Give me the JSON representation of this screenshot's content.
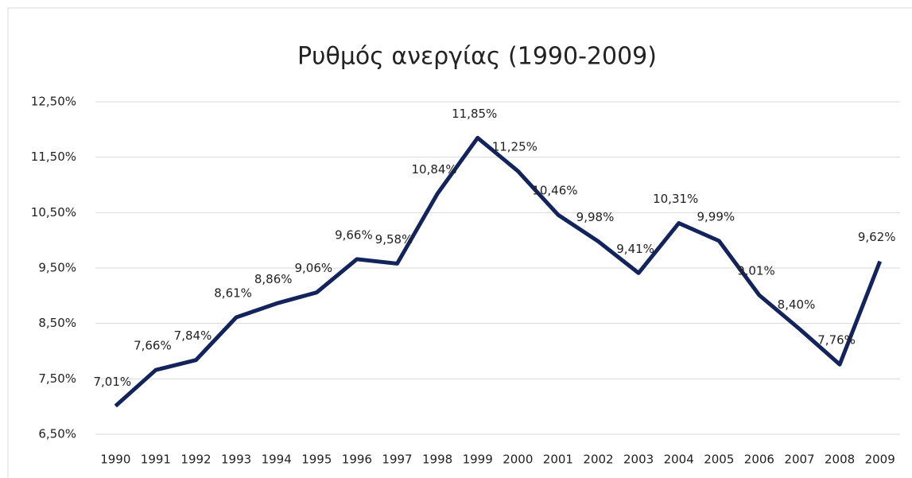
{
  "chart_data": {
    "type": "line",
    "title": "Ρυθμός ανεργίας (1990-2009)",
    "categories": [
      "1990",
      "1991",
      "1992",
      "1993",
      "1994",
      "1995",
      "1996",
      "1997",
      "1998",
      "1999",
      "2000",
      "2001",
      "2002",
      "2003",
      "2004",
      "2005",
      "2006",
      "2007",
      "2008",
      "2009"
    ],
    "series": [
      {
        "name": "Ρυθμός ανεργίας",
        "color": "#13235b",
        "values": [
          7.01,
          7.66,
          7.84,
          8.61,
          8.86,
          9.06,
          9.66,
          9.58,
          10.84,
          11.85,
          11.25,
          10.46,
          9.98,
          9.41,
          10.31,
          9.99,
          9.01,
          8.4,
          7.76,
          9.62
        ],
        "value_labels": [
          "7,01%",
          "7,66%",
          "7,84%",
          "8,61%",
          "8,86%",
          "9,06%",
          "9,66%",
          "9,58%",
          "10,84%",
          "11,85%",
          "11,25%",
          "10,46%",
          "9,98%",
          "9,41%",
          "10,31%",
          "9,99%",
          "9,01%",
          "8,40%",
          "7,76%",
          "9,62%"
        ]
      }
    ],
    "ylim": [
      6.5,
      12.5
    ],
    "yticks": [
      {
        "value": 6.5,
        "label": "6,50%"
      },
      {
        "value": 7.5,
        "label": "7,50%"
      },
      {
        "value": 8.5,
        "label": "8,50%"
      },
      {
        "value": 9.5,
        "label": "9,50%"
      },
      {
        "value": 10.5,
        "label": "10,50%"
      },
      {
        "value": 11.5,
        "label": "11,50%"
      },
      {
        "value": 12.5,
        "label": "12,50%"
      }
    ],
    "grid": true
  }
}
